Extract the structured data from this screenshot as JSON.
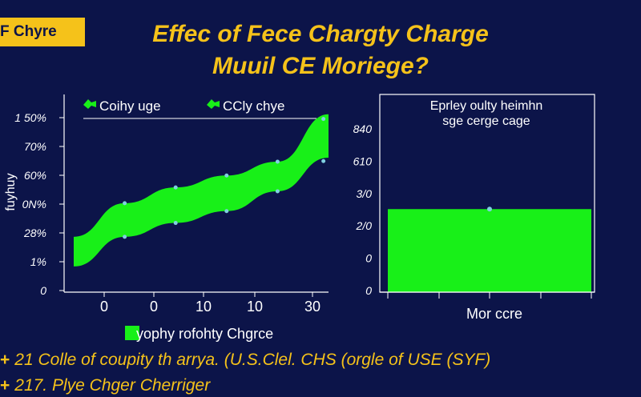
{
  "badge": "F Chyre",
  "title_line1": "Effec of Fece Chargty Charge",
  "title_line2": "Muuil CE  Moriege?",
  "colors": {
    "background": "#0c1449",
    "accent": "#f5c21a",
    "series": "#18f018",
    "marker": "#7fd0e0"
  },
  "chart_data": [
    {
      "type": "area",
      "title": "",
      "legend": [
        "Coihy uge",
        "CCly chye"
      ],
      "legend_position": "top",
      "ylabel": "fuyhuy",
      "xlabel": "yophy rofohty Chgrce",
      "y_tick_labels": [
        "1 50%",
        "70%",
        "60%",
        "0N%",
        "28%",
        "1%",
        "0"
      ],
      "x_tick_labels": [
        "0",
        "0",
        "10",
        "10",
        "30"
      ],
      "x": [
        0,
        1,
        2,
        3,
        4,
        5
      ],
      "upper": [
        28,
        45,
        53,
        59,
        66,
        90
      ],
      "lower": [
        13,
        28,
        35,
        41,
        51,
        68
      ],
      "markers_upper_x": [
        1,
        2,
        3,
        4,
        4.9
      ],
      "markers_lower_x": [
        1,
        2,
        3,
        4,
        4.9
      ],
      "ylim": [
        0,
        100
      ],
      "grid": false
    },
    {
      "type": "bar",
      "title": "Eprley oulty heimhn\nsge cerge cage",
      "xlabel": "Mor ccre",
      "y_tick_labels": [
        "840",
        "610",
        "3/0",
        "2/0",
        "0",
        "0"
      ],
      "categories": [
        ""
      ],
      "values": [
        2.1
      ],
      "ylim": [
        0,
        5
      ],
      "grid": false
    }
  ],
  "footnotes": [
    {
      "mark": "+",
      "text": "21 Colle of coupity th arrya. (U.S.Clel. CHS (orgle of USE (SYF)"
    },
    {
      "mark": "+",
      "text": "217. Plye Chger Cherriger"
    }
  ]
}
